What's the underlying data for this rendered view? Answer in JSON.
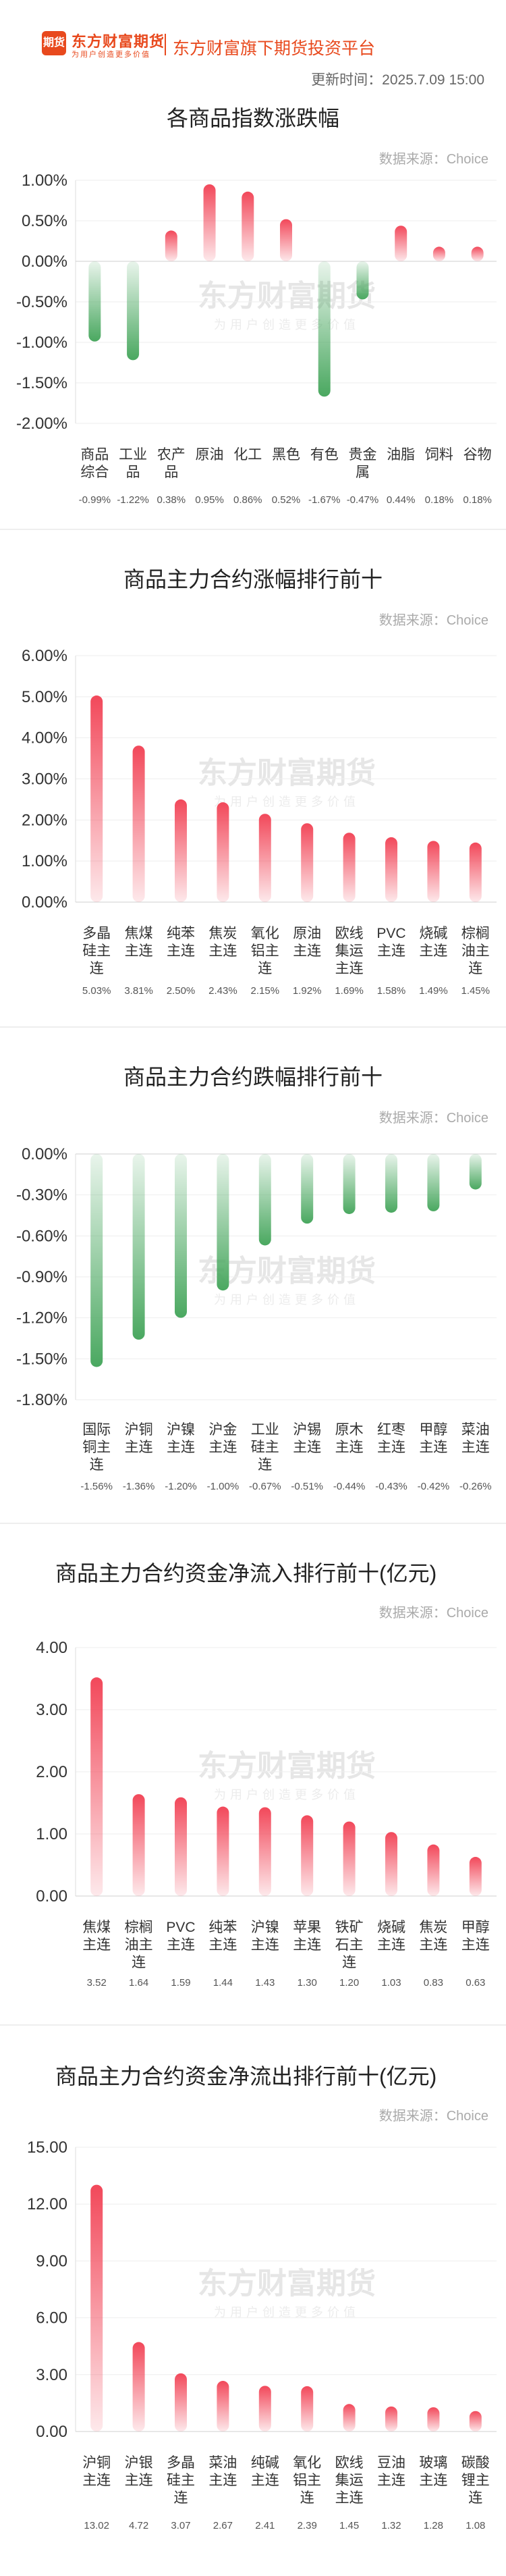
{
  "header": {
    "logo_mark": "期货",
    "logo_name": "东方财富期货",
    "logo_slogan": "为用户创造更多价值",
    "platform": "东方财富旗下期货投资平台",
    "update_time": "更新时间：2025.7.09 15:00"
  },
  "watermark": {
    "name": "东方财富期货",
    "slogan": "为用户创造更多价值"
  },
  "colors": {
    "up": "#f2485a",
    "down": "#4aa860"
  },
  "chart_data": [
    {
      "type": "bar",
      "title": "各商品指数涨跌幅",
      "source": "数据来源：Choice",
      "ylim": [
        -2.0,
        1.0
      ],
      "yticks": [
        "1.00%",
        "0.50%",
        "0.00%",
        "-0.50%",
        "-1.00%",
        "-1.50%",
        "-2.00%"
      ],
      "categories": [
        "商品综合",
        "工业品",
        "农产品",
        "原油",
        "化工",
        "黑色",
        "有色",
        "贵金属",
        "油脂",
        "饲料",
        "谷物"
      ],
      "values": [
        -0.99,
        -1.22,
        0.38,
        0.95,
        0.86,
        0.52,
        -1.67,
        -0.47,
        0.44,
        0.18,
        0.18
      ],
      "value_labels": [
        "-0.99%",
        "-1.22%",
        "0.38%",
        "0.95%",
        "0.86%",
        "0.52%",
        "-1.67%",
        "-0.47%",
        "0.44%",
        "0.18%",
        "0.18%"
      ],
      "grid": true
    },
    {
      "type": "bar",
      "title": "商品主力合约涨幅排行前十",
      "source": "数据来源：Choice",
      "ylim": [
        0,
        6.0
      ],
      "yticks": [
        "6.00%",
        "5.00%",
        "4.00%",
        "3.00%",
        "2.00%",
        "1.00%",
        "0.00%"
      ],
      "categories": [
        "多晶硅主连",
        "焦煤主连",
        "纯苯主连",
        "焦炭主连",
        "氧化铝主连",
        "原油主连",
        "欧线集运主连",
        "PVC主连",
        "烧碱主连",
        "棕榈油主连"
      ],
      "values": [
        5.03,
        3.81,
        2.5,
        2.43,
        2.15,
        1.92,
        1.69,
        1.58,
        1.49,
        1.45
      ],
      "value_labels": [
        "5.03%",
        "3.81%",
        "2.50%",
        "2.43%",
        "2.15%",
        "1.92%",
        "1.69%",
        "1.58%",
        "1.49%",
        "1.45%"
      ],
      "grid": true
    },
    {
      "type": "bar",
      "title": "商品主力合约跌幅排行前十",
      "source": "数据来源：Choice",
      "ylim": [
        -1.8,
        0
      ],
      "yticks": [
        "0.00%",
        "-0.30%",
        "-0.60%",
        "-0.90%",
        "-1.20%",
        "-1.50%",
        "-1.80%"
      ],
      "categories": [
        "国际铜主连",
        "沪铜主连",
        "沪镍主连",
        "沪金主连",
        "工业硅主连",
        "沪锡主连",
        "原木主连",
        "红枣主连",
        "甲醇主连",
        "菜油主连"
      ],
      "values": [
        -1.56,
        -1.36,
        -1.2,
        -1.0,
        -0.67,
        -0.51,
        -0.44,
        -0.43,
        -0.42,
        -0.26
      ],
      "value_labels": [
        "-1.56%",
        "-1.36%",
        "-1.20%",
        "-1.00%",
        "-0.67%",
        "-0.51%",
        "-0.44%",
        "-0.43%",
        "-0.42%",
        "-0.26%"
      ],
      "grid": true
    },
    {
      "type": "bar",
      "title": "商品主力合约资金净流入排行前十(亿元)",
      "source": "数据来源：Choice",
      "ylim": [
        0,
        4.0
      ],
      "yticks": [
        "4.00",
        "3.00",
        "2.00",
        "1.00",
        "0.00"
      ],
      "categories": [
        "焦煤主连",
        "棕榈油主连",
        "PVC主连",
        "纯苯主连",
        "沪镍主连",
        "苹果主连",
        "铁矿石主连",
        "烧碱主连",
        "焦炭主连",
        "甲醇主连"
      ],
      "values": [
        3.52,
        1.64,
        1.59,
        1.44,
        1.43,
        1.3,
        1.2,
        1.03,
        0.83,
        0.63
      ],
      "value_labels": [
        "3.52",
        "1.64",
        "1.59",
        "1.44",
        "1.43",
        "1.30",
        "1.20",
        "1.03",
        "0.83",
        "0.63"
      ],
      "grid": true
    },
    {
      "type": "bar",
      "title": "商品主力合约资金净流出排行前十(亿元)",
      "source": "数据来源：Choice",
      "ylim": [
        0,
        15.0
      ],
      "yticks": [
        "15.00",
        "12.00",
        "9.00",
        "6.00",
        "3.00",
        "0.00"
      ],
      "categories": [
        "沪铜主连",
        "沪银主连",
        "多晶硅主连",
        "菜油主连",
        "纯碱主连",
        "氧化铝主连",
        "欧线集运主连",
        "豆油主连",
        "玻璃主连",
        "碳酸锂主连"
      ],
      "values": [
        13.02,
        4.72,
        3.07,
        2.67,
        2.41,
        2.39,
        1.45,
        1.32,
        1.28,
        1.08
      ],
      "value_labels": [
        "13.02",
        "4.72",
        "3.07",
        "2.67",
        "2.41",
        "2.39",
        "1.45",
        "1.32",
        "1.28",
        "1.08"
      ],
      "grid": true
    }
  ]
}
